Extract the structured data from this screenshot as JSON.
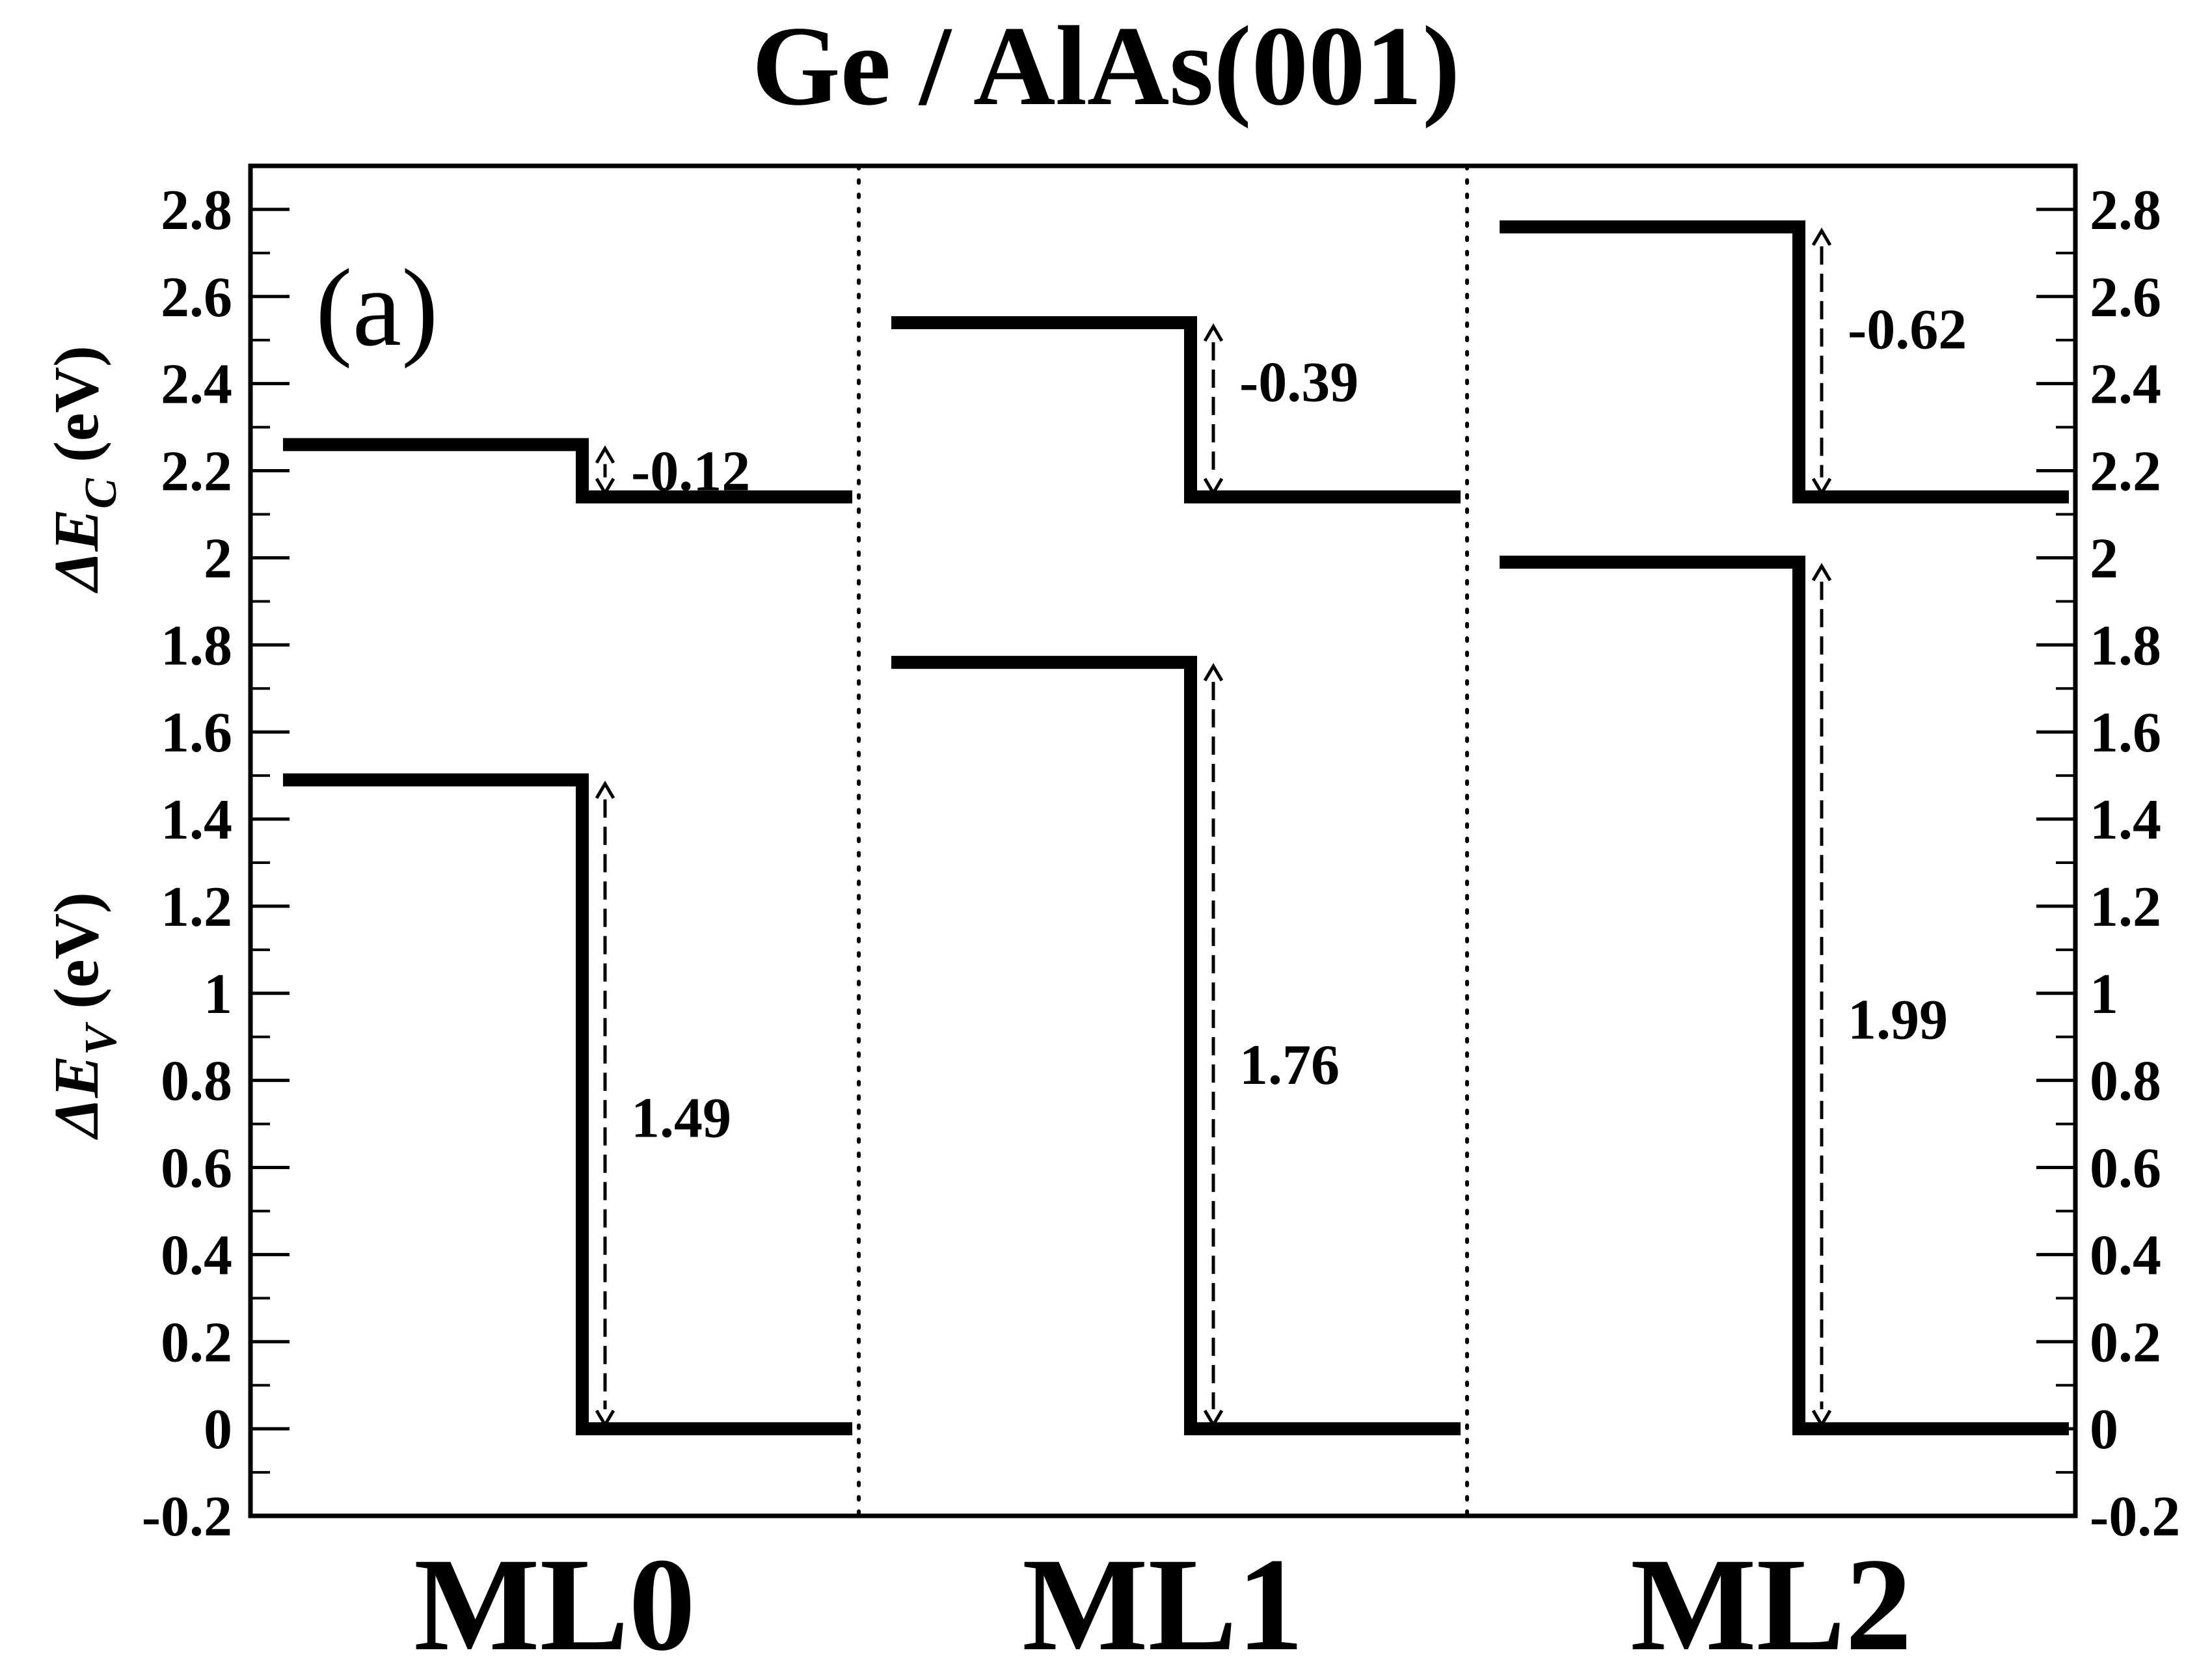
{
  "chart_data": {
    "type": "line",
    "title": "Ge / AlAs(001)",
    "panel_label": "(a)",
    "ylabel_top": {
      "prefix": "ΔE",
      "sub": "C",
      "unit": "(eV)"
    },
    "ylabel_bottom": {
      "prefix": "ΔE",
      "sub": "V",
      "unit": "(eV)"
    },
    "ylim": [
      -0.2,
      2.9
    ],
    "yticks": [
      -0.2,
      0,
      0.2,
      0.4,
      0.6,
      0.8,
      1,
      1.2,
      1.4,
      1.6,
      1.8,
      2,
      2.2,
      2.4,
      2.6,
      2.8
    ],
    "ytick_labels": [
      "-0.2",
      "0",
      "0.2",
      "0.4",
      "0.6",
      "0.8",
      "1",
      "1.2",
      "1.4",
      "1.6",
      "1.8",
      "2",
      "2.2",
      "2.4",
      "2.6",
      "2.8"
    ],
    "categories": [
      "ML0",
      "ML1",
      "ML2"
    ],
    "grid": false,
    "panels": [
      {
        "category": "ML0",
        "conduction": {
          "left": 2.26,
          "right": 2.14,
          "offset_label": "-0.12"
        },
        "valence": {
          "left": 1.49,
          "right": 0,
          "offset_label": "1.49"
        }
      },
      {
        "category": "ML1",
        "conduction": {
          "left": 2.54,
          "right": 2.14,
          "offset_label": "-0.39"
        },
        "valence": {
          "left": 1.76,
          "right": 0,
          "offset_label": "1.76"
        }
      },
      {
        "category": "ML2",
        "conduction": {
          "left": 2.76,
          "right": 2.14,
          "offset_label": "-0.62"
        },
        "valence": {
          "left": 1.99,
          "right": 0,
          "offset_label": "1.99"
        }
      }
    ]
  }
}
